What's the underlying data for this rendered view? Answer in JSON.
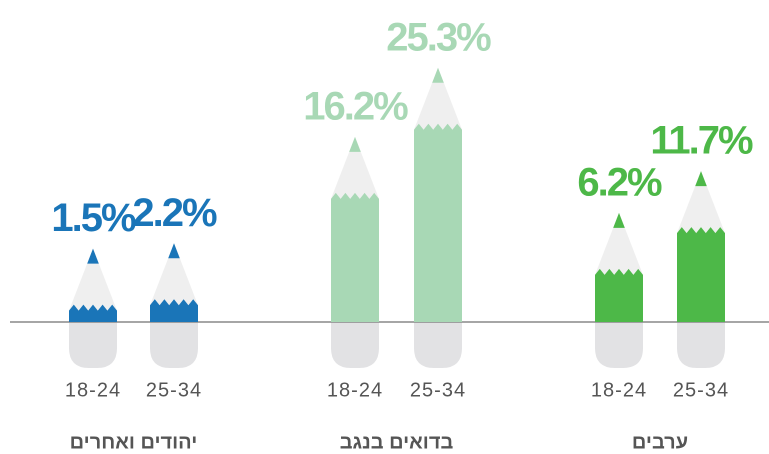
{
  "chart_data": {
    "type": "pencil-bar",
    "categories": [
      "יהודים ואחרים",
      "בדואים בנגב",
      "ערבים"
    ],
    "colors": [
      "#1a75b8",
      "#a8d8b5",
      "#4db848"
    ],
    "series": [
      {
        "name": "18-24",
        "values": [
          1.5,
          16.2,
          6.2
        ],
        "value_labels": [
          "1.5%",
          "16.2%",
          "6.2%"
        ]
      },
      {
        "name": "25-34",
        "values": [
          2.2,
          25.3,
          11.7
        ],
        "value_labels": [
          "2.2%",
          "25.3%",
          "11.7%"
        ]
      }
    ],
    "ylim": [
      0,
      40
    ]
  }
}
